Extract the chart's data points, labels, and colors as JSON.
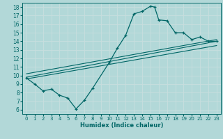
{
  "title": "",
  "xlabel": "Humidex (Indice chaleur)",
  "bg_color": "#b2d8d8",
  "grid_color": "#d0e8e8",
  "line_color": "#006666",
  "xlim": [
    -0.5,
    23.5
  ],
  "ylim": [
    5.5,
    18.5
  ],
  "xticks": [
    0,
    1,
    2,
    3,
    4,
    5,
    6,
    7,
    8,
    9,
    10,
    11,
    12,
    13,
    14,
    15,
    16,
    17,
    18,
    19,
    20,
    21,
    22,
    23
  ],
  "yticks": [
    6,
    7,
    8,
    9,
    10,
    11,
    12,
    13,
    14,
    15,
    16,
    17,
    18
  ],
  "main_line": {
    "x": [
      0,
      1,
      2,
      3,
      4,
      5,
      6,
      7,
      8,
      10,
      11,
      12,
      13,
      14,
      15,
      15.5,
      16,
      17,
      18,
      19,
      20,
      21,
      22,
      23
    ],
    "y": [
      9.7,
      9.0,
      8.2,
      8.4,
      7.7,
      7.35,
      6.1,
      7.1,
      8.5,
      11.5,
      13.2,
      14.7,
      17.2,
      17.5,
      18.1,
      18.0,
      16.5,
      16.4,
      15.0,
      15.0,
      14.2,
      14.5,
      14.0,
      14.0
    ]
  },
  "trend_line1": {
    "x": [
      0,
      23
    ],
    "y": [
      9.6,
      13.5
    ]
  },
  "trend_line2": {
    "x": [
      0,
      23
    ],
    "y": [
      9.8,
      14.0
    ]
  },
  "trend_line3": {
    "x": [
      0,
      23
    ],
    "y": [
      10.2,
      14.2
    ]
  }
}
